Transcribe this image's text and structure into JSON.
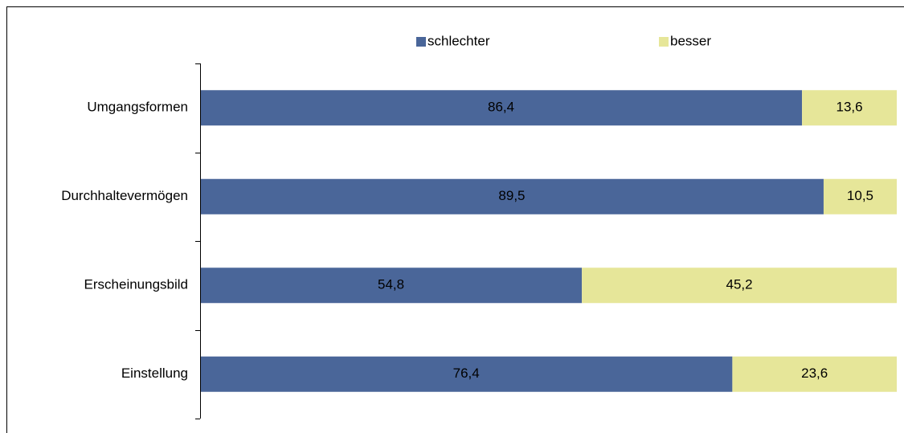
{
  "chart_data": {
    "type": "stacked-bar-horizontal",
    "categories": [
      "Umgangsformen",
      "Durchhaltevermögen",
      "Erscheinungsbild",
      "Einstellung"
    ],
    "series": [
      {
        "name": "schlechter",
        "color": "#4a6699",
        "values": [
          86.4,
          89.5,
          54.8,
          76.4
        ],
        "value_labels": [
          "86,4",
          "89,5",
          "54,8",
          "76,4"
        ]
      },
      {
        "name": "besser",
        "color": "#e6e699",
        "values": [
          13.6,
          10.5,
          45.2,
          23.6
        ],
        "value_labels": [
          "13,6",
          "10,5",
          "45,2",
          "23,6"
        ]
      }
    ],
    "xlim": [
      0,
      100
    ]
  }
}
